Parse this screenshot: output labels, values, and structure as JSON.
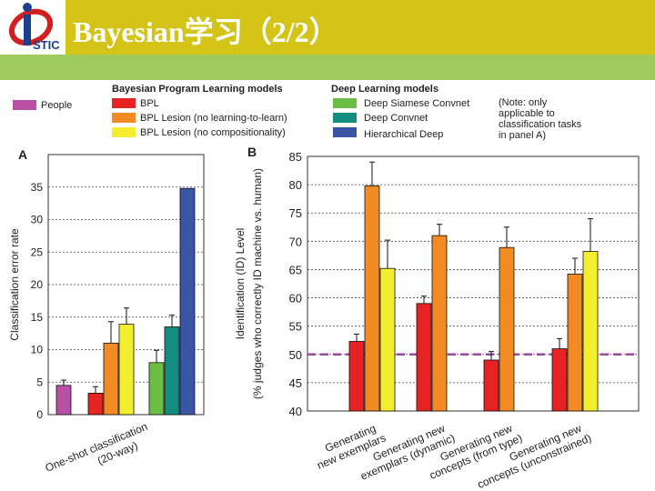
{
  "header": {
    "title": "Bayesian学习（2/2）",
    "logo_text": "STIC",
    "accent_color": "#d4c417",
    "band_color": "#9fcb5e"
  },
  "legend": {
    "people": "People",
    "bpl_heading": "Bayesian Program Learning models",
    "bpl": "BPL",
    "bpl_lesion_ltl": "BPL Lesion (no learning-to-learn)",
    "bpl_lesion_comp": "BPL Lesion (no compositionality)",
    "dl_heading": "Deep Learning models",
    "siamese": "Deep Siamese Convnet",
    "convnet": "Deep Convnet",
    "hier": "Hierarchical Deep",
    "note": [
      "(Note: only",
      "applicable to",
      "classification tasks",
      "in panel A)"
    ]
  },
  "colors": {
    "people": "#b851a5",
    "bpl": "#e52323",
    "bpl_lesion_ltl": "#f28b23",
    "bpl_lesion_comp": "#f4ef2e",
    "siamese": "#6cbd45",
    "convnet": "#148c80",
    "hier": "#3a55a5",
    "human_line": "#9a4c9c"
  },
  "chart_data": [
    {
      "type": "bar",
      "panel": "A",
      "ylabel": "Classification error rate",
      "category": "One-shot classification\n(20-way)",
      "category_lines": [
        "One-shot classification",
        "(20-way)"
      ],
      "ylim": [
        0,
        40
      ],
      "yticks": [
        0,
        5,
        10,
        15,
        20,
        25,
        30,
        35
      ],
      "grid": "horizontal dashed",
      "bars": [
        {
          "name": "People",
          "color_key": "people",
          "value": 4.5,
          "error": 0.8
        },
        {
          "name": "BPL",
          "color_key": "bpl",
          "value": 3.3,
          "error": 1.0
        },
        {
          "name": "BPL Lesion (no learning-to-learn)",
          "color_key": "bpl_lesion_ltl",
          "value": 11.0,
          "error": 3.3
        },
        {
          "name": "BPL Lesion (no compositionality)",
          "color_key": "bpl_lesion_comp",
          "value": 13.9,
          "error": 2.5
        },
        {
          "name": "Deep Siamese Convnet",
          "color_key": "siamese",
          "value": 8.0,
          "error": 1.9
        },
        {
          "name": "Deep Convnet",
          "color_key": "convnet",
          "value": 13.5,
          "error": 1.8
        },
        {
          "name": "Hierarchical Deep",
          "color_key": "hier",
          "value": 34.8,
          "error": 0
        }
      ]
    },
    {
      "type": "bar",
      "panel": "B",
      "ylabel": "Identification (ID) Level",
      "ylabel_sub": "(% judges who correctly ID machine vs. human)",
      "ylim": [
        40,
        85
      ],
      "yticks": [
        40,
        45,
        50,
        55,
        60,
        65,
        70,
        75,
        80,
        85
      ],
      "grid": "horizontal dashed",
      "reference_line": 50,
      "categories": [
        {
          "lines": [
            "Generating",
            "new exemplars"
          ],
          "bars": [
            {
              "color_key": "bpl",
              "value": 52.3,
              "error": 1.3
            },
            {
              "color_key": "bpl_lesion_ltl",
              "value": 79.8,
              "error": 4.2
            },
            {
              "color_key": "bpl_lesion_comp",
              "value": 65.2,
              "error": 5.0
            }
          ]
        },
        {
          "lines": [
            "Generating new",
            "exemplars (dynamic)"
          ],
          "bars": [
            {
              "color_key": "bpl",
              "value": 59.0,
              "error": 1.3
            },
            {
              "color_key": "bpl_lesion_ltl",
              "value": 71.0,
              "error": 2.0
            }
          ]
        },
        {
          "lines": [
            "Generating new",
            "concepts (from type)"
          ],
          "bars": [
            {
              "color_key": "bpl",
              "value": 49.0,
              "error": 1.5
            },
            {
              "color_key": "bpl_lesion_ltl",
              "value": 68.9,
              "error": 3.6
            }
          ]
        },
        {
          "lines": [
            "Generating new",
            "concepts (unconstrained)"
          ],
          "bars": [
            {
              "color_key": "bpl",
              "value": 51.0,
              "error": 1.8
            },
            {
              "color_key": "bpl_lesion_ltl",
              "value": 64.2,
              "error": 2.8
            },
            {
              "color_key": "bpl_lesion_comp",
              "value": 68.2,
              "error": 5.8
            }
          ]
        }
      ]
    }
  ]
}
